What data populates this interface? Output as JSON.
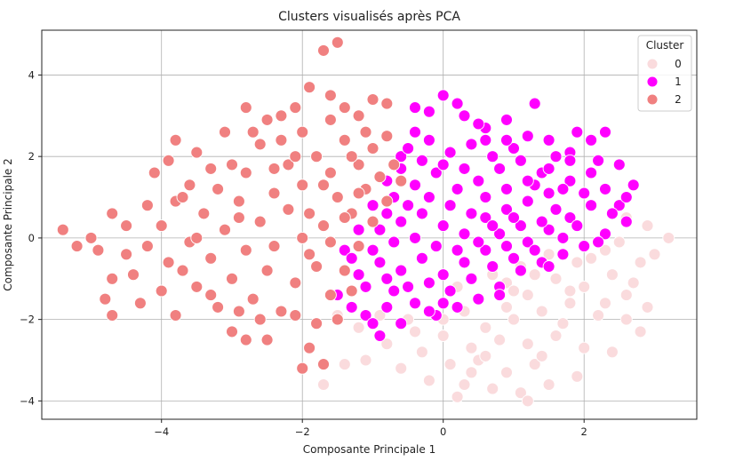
{
  "chart_data": {
    "type": "scatter",
    "title": "Clusters visualisés après PCA",
    "xlabel": "Composante Principale 1",
    "ylabel": "Composante Principale 2",
    "xlim": [
      -5.7,
      3.6
    ],
    "ylim": [
      -4.45,
      5.1
    ],
    "xticks": [
      -4,
      -2,
      0,
      2
    ],
    "yticks": [
      -4,
      -2,
      0,
      2,
      4
    ],
    "xtick_labels": [
      "−4",
      "−2",
      "0",
      "2"
    ],
    "ytick_labels": [
      "−4",
      "−2",
      "0",
      "2",
      "4"
    ],
    "grid": true,
    "legend": {
      "title": "Cluster",
      "placement": "top-right",
      "entries": [
        "0",
        "1",
        "2"
      ]
    },
    "series": [
      {
        "name": "0",
        "color": "#fadbdd",
        "points": [
          [
            0.2,
            -1.2
          ],
          [
            0.5,
            -1.5
          ],
          [
            0.9,
            -1.1
          ],
          [
            1.2,
            -1.4
          ],
          [
            1.6,
            -1.0
          ],
          [
            2.0,
            -1.2
          ],
          [
            2.4,
            -0.9
          ],
          [
            2.8,
            -0.6
          ],
          [
            3.2,
            0.0
          ],
          [
            2.9,
            0.3
          ],
          [
            2.6,
            0.5
          ],
          [
            2.3,
            -0.3
          ],
          [
            1.9,
            -0.6
          ],
          [
            1.5,
            -0.4
          ],
          [
            1.1,
            -0.7
          ],
          [
            0.7,
            -0.9
          ],
          [
            0.3,
            -1.8
          ],
          [
            0.6,
            -2.2
          ],
          [
            1.0,
            -2.0
          ],
          [
            1.4,
            -1.8
          ],
          [
            1.8,
            -1.6
          ],
          [
            2.2,
            -1.9
          ],
          [
            2.6,
            -1.4
          ],
          [
            0.0,
            -2.4
          ],
          [
            0.4,
            -2.7
          ],
          [
            0.8,
            -2.5
          ],
          [
            1.2,
            -2.6
          ],
          [
            1.6,
            -2.4
          ],
          [
            2.0,
            -2.7
          ],
          [
            -0.3,
            -2.8
          ],
          [
            0.1,
            -3.1
          ],
          [
            0.5,
            -3.0
          ],
          [
            0.9,
            -3.3
          ],
          [
            1.3,
            -3.1
          ],
          [
            -0.6,
            -3.2
          ],
          [
            -0.2,
            -3.5
          ],
          [
            0.3,
            -3.6
          ],
          [
            0.7,
            -3.7
          ],
          [
            1.1,
            -3.8
          ],
          [
            -0.8,
            -2.6
          ],
          [
            -1.1,
            -3.0
          ],
          [
            -1.4,
            -3.1
          ],
          [
            -1.7,
            -3.6
          ],
          [
            -1.2,
            -2.2
          ],
          [
            -1.5,
            -1.9
          ],
          [
            -0.9,
            -1.9
          ],
          [
            2.8,
            -2.3
          ],
          [
            2.4,
            -2.8
          ],
          [
            1.9,
            -3.4
          ],
          [
            1.5,
            -3.6
          ],
          [
            1.2,
            -4.0
          ],
          [
            0.2,
            -3.9
          ],
          [
            2.7,
            -1.1
          ],
          [
            3.0,
            -0.4
          ],
          [
            2.5,
            -0.1
          ],
          [
            1.7,
            -2.1
          ],
          [
            0.9,
            -1.7
          ],
          [
            1.3,
            -0.9
          ],
          [
            2.1,
            -0.5
          ],
          [
            0.0,
            -2.0
          ],
          [
            -0.4,
            -2.3
          ],
          [
            0.6,
            -2.9
          ],
          [
            1.0,
            -1.3
          ],
          [
            1.8,
            -1.3
          ],
          [
            2.3,
            -1.6
          ],
          [
            0.4,
            -3.3
          ],
          [
            -0.5,
            -2.0
          ],
          [
            1.4,
            -2.9
          ],
          [
            2.6,
            -2.0
          ],
          [
            2.9,
            -1.7
          ]
        ]
      },
      {
        "name": "1",
        "color": "#ff00ff",
        "points": [
          [
            -1.5,
            -1.4
          ],
          [
            -1.3,
            -1.7
          ],
          [
            -1.1,
            -1.9
          ],
          [
            -1.2,
            -0.9
          ],
          [
            -1.4,
            -0.3
          ],
          [
            -1.2,
            0.2
          ],
          [
            -1.0,
            0.8
          ],
          [
            -0.8,
            1.4
          ],
          [
            -0.6,
            2.0
          ],
          [
            -0.4,
            2.6
          ],
          [
            -0.2,
            3.1
          ],
          [
            0.0,
            3.5
          ],
          [
            0.3,
            3.0
          ],
          [
            0.6,
            2.7
          ],
          [
            0.9,
            2.9
          ],
          [
            1.2,
            2.5
          ],
          [
            1.5,
            2.4
          ],
          [
            1.8,
            2.1
          ],
          [
            2.1,
            2.4
          ],
          [
            2.3,
            2.6
          ],
          [
            2.5,
            1.8
          ],
          [
            2.7,
            1.3
          ],
          [
            2.5,
            0.8
          ],
          [
            2.6,
            0.4
          ],
          [
            2.3,
            0.1
          ],
          [
            2.0,
            -0.2
          ],
          [
            1.7,
            -0.4
          ],
          [
            1.4,
            -0.6
          ],
          [
            1.1,
            -0.8
          ],
          [
            0.8,
            -1.2
          ],
          [
            0.5,
            -1.5
          ],
          [
            0.2,
            -1.7
          ],
          [
            -0.1,
            -1.9
          ],
          [
            -0.4,
            -1.6
          ],
          [
            -0.7,
            -1.3
          ],
          [
            -0.9,
            -2.4
          ],
          [
            -0.6,
            -2.1
          ],
          [
            -0.9,
            -0.6
          ],
          [
            -0.6,
            -0.8
          ],
          [
            -0.3,
            -0.5
          ],
          [
            0.0,
            -0.9
          ],
          [
            0.3,
            -0.6
          ],
          [
            0.6,
            -0.3
          ],
          [
            0.9,
            -0.2
          ],
          [
            1.2,
            -0.1
          ],
          [
            1.5,
            0.2
          ],
          [
            1.8,
            0.5
          ],
          [
            2.1,
            0.8
          ],
          [
            -0.9,
            0.2
          ],
          [
            -0.6,
            0.4
          ],
          [
            -0.3,
            0.6
          ],
          [
            0.0,
            0.3
          ],
          [
            0.3,
            0.1
          ],
          [
            0.6,
            0.5
          ],
          [
            0.9,
            0.7
          ],
          [
            1.2,
            0.9
          ],
          [
            1.5,
            1.1
          ],
          [
            1.8,
            1.4
          ],
          [
            2.1,
            1.6
          ],
          [
            -0.7,
            1.0
          ],
          [
            -0.4,
            1.3
          ],
          [
            -0.1,
            1.6
          ],
          [
            0.2,
            1.2
          ],
          [
            0.5,
            1.4
          ],
          [
            0.8,
            1.7
          ],
          [
            1.1,
            1.9
          ],
          [
            1.4,
            1.6
          ],
          [
            1.7,
            1.2
          ],
          [
            -0.5,
            2.2
          ],
          [
            -0.2,
            2.4
          ],
          [
            0.1,
            2.1
          ],
          [
            0.4,
            2.3
          ],
          [
            0.7,
            2.0
          ],
          [
            1.0,
            2.2
          ],
          [
            1.3,
            1.3
          ],
          [
            1.6,
            0.7
          ],
          [
            1.9,
            0.3
          ],
          [
            2.2,
            -0.1
          ],
          [
            -1.0,
            -0.3
          ],
          [
            -0.7,
            -0.1
          ],
          [
            -0.4,
            0.0
          ],
          [
            -0.1,
            -0.2
          ],
          [
            0.2,
            -0.3
          ],
          [
            0.5,
            -0.1
          ],
          [
            0.8,
            0.1
          ],
          [
            1.1,
            0.3
          ],
          [
            1.4,
            0.4
          ],
          [
            1.7,
            0.0
          ],
          [
            -1.1,
            -1.2
          ],
          [
            -0.8,
            -1.0
          ],
          [
            -0.5,
            -1.2
          ],
          [
            -0.2,
            -1.1
          ],
          [
            0.1,
            -1.3
          ],
          [
            0.4,
            -1.0
          ],
          [
            0.7,
            -0.7
          ],
          [
            1.0,
            -0.5
          ],
          [
            1.3,
            -0.3
          ],
          [
            -0.3,
            1.9
          ],
          [
            0.0,
            1.8
          ],
          [
            0.3,
            1.7
          ],
          [
            0.6,
            1.0
          ],
          [
            0.9,
            1.2
          ],
          [
            1.2,
            1.4
          ],
          [
            1.5,
            1.7
          ],
          [
            1.8,
            1.9
          ],
          [
            2.0,
            1.1
          ],
          [
            2.3,
            1.2
          ],
          [
            -0.8,
            0.6
          ],
          [
            -0.5,
            0.8
          ],
          [
            -0.2,
            1.0
          ],
          [
            0.1,
            0.8
          ],
          [
            0.4,
            0.6
          ],
          [
            0.7,
            0.3
          ],
          [
            1.0,
            0.5
          ],
          [
            -0.4,
            3.2
          ],
          [
            1.3,
            3.3
          ],
          [
            -0.8,
            -1.7
          ],
          [
            0.0,
            -1.6
          ],
          [
            0.9,
            2.4
          ],
          [
            1.9,
            2.6
          ],
          [
            2.4,
            0.6
          ],
          [
            2.2,
            1.9
          ],
          [
            -1.3,
            -0.5
          ],
          [
            0.5,
            2.8
          ],
          [
            0.2,
            3.3
          ],
          [
            -0.6,
            1.7
          ],
          [
            1.6,
            2.0
          ],
          [
            2.6,
            1.0
          ],
          [
            -1.0,
            -2.1
          ],
          [
            -0.2,
            -1.8
          ],
          [
            0.8,
            -1.4
          ],
          [
            1.5,
            -0.7
          ],
          [
            -0.9,
            1.5
          ],
          [
            0.6,
            2.4
          ]
        ]
      },
      {
        "name": "2",
        "color": "#f08080",
        "points": [
          [
            -5.4,
            0.2
          ],
          [
            -5.2,
            -0.2
          ],
          [
            -5.0,
            0.0
          ],
          [
            -4.9,
            -0.3
          ],
          [
            -4.7,
            0.6
          ],
          [
            -4.5,
            0.3
          ],
          [
            -4.7,
            -1.0
          ],
          [
            -4.8,
            -1.5
          ],
          [
            -4.7,
            -1.9
          ],
          [
            -4.4,
            -0.9
          ],
          [
            -4.2,
            -0.2
          ],
          [
            -4.0,
            0.3
          ],
          [
            -3.8,
            0.9
          ],
          [
            -3.6,
            1.3
          ],
          [
            -3.5,
            2.1
          ],
          [
            -3.8,
            2.4
          ],
          [
            -4.1,
            1.6
          ],
          [
            -3.9,
            -0.6
          ],
          [
            -4.0,
            -1.3
          ],
          [
            -3.8,
            -1.9
          ],
          [
            -3.5,
            -1.2
          ],
          [
            -3.3,
            -0.5
          ],
          [
            -3.1,
            0.2
          ],
          [
            -2.9,
            0.9
          ],
          [
            -2.8,
            1.6
          ],
          [
            -2.6,
            2.3
          ],
          [
            -2.8,
            3.2
          ],
          [
            -2.5,
            2.9
          ],
          [
            -2.3,
            3.0
          ],
          [
            -2.1,
            3.2
          ],
          [
            -1.9,
            3.7
          ],
          [
            -1.7,
            4.6
          ],
          [
            -1.5,
            4.8
          ],
          [
            -1.4,
            3.2
          ],
          [
            -1.2,
            3.0
          ],
          [
            -1.0,
            3.4
          ],
          [
            -0.8,
            3.3
          ],
          [
            -0.8,
            2.5
          ],
          [
            -1.0,
            2.2
          ],
          [
            -1.2,
            1.8
          ],
          [
            -1.4,
            2.4
          ],
          [
            -1.6,
            1.6
          ],
          [
            -1.8,
            2.0
          ],
          [
            -2.0,
            1.3
          ],
          [
            -2.2,
            1.8
          ],
          [
            -2.4,
            1.1
          ],
          [
            -2.6,
            0.4
          ],
          [
            -2.8,
            -0.3
          ],
          [
            -3.0,
            -1.0
          ],
          [
            -3.2,
            -1.7
          ],
          [
            -3.0,
            -2.3
          ],
          [
            -2.8,
            -2.5
          ],
          [
            -2.5,
            -2.5
          ],
          [
            -2.3,
            -1.8
          ],
          [
            -2.1,
            -1.1
          ],
          [
            -1.9,
            -0.4
          ],
          [
            -1.7,
            0.3
          ],
          [
            -1.5,
            1.0
          ],
          [
            -1.3,
            0.6
          ],
          [
            -1.1,
            1.2
          ],
          [
            -0.9,
            1.5
          ],
          [
            -0.7,
            1.8
          ],
          [
            -0.6,
            1.4
          ],
          [
            -0.8,
            0.9
          ],
          [
            -1.0,
            0.4
          ],
          [
            -1.2,
            -0.2
          ],
          [
            -1.4,
            -0.8
          ],
          [
            -1.6,
            -1.4
          ],
          [
            -1.8,
            -2.1
          ],
          [
            -1.9,
            -2.7
          ],
          [
            -1.7,
            -3.1
          ],
          [
            -2.0,
            -3.2
          ],
          [
            -3.6,
            -0.1
          ],
          [
            -3.4,
            0.6
          ],
          [
            -3.2,
            1.2
          ],
          [
            -3.0,
            1.8
          ],
          [
            -2.7,
            2.6
          ],
          [
            -2.4,
            1.7
          ],
          [
            -2.2,
            0.7
          ],
          [
            -2.0,
            0.0
          ],
          [
            -1.8,
            -0.7
          ],
          [
            -1.6,
            -0.1
          ],
          [
            -1.4,
            0.5
          ],
          [
            -1.2,
            1.1
          ],
          [
            -2.5,
            -0.8
          ],
          [
            -2.7,
            -1.5
          ],
          [
            -2.9,
            -1.8
          ],
          [
            -3.3,
            -1.4
          ],
          [
            -3.7,
            -0.8
          ],
          [
            -4.2,
            0.8
          ],
          [
            -4.5,
            -0.4
          ],
          [
            -3.9,
            1.9
          ],
          [
            -3.1,
            2.6
          ],
          [
            -2.3,
            2.4
          ],
          [
            -1.6,
            2.9
          ],
          [
            -1.1,
            2.6
          ],
          [
            -2.1,
            -1.9
          ],
          [
            -1.5,
            -2.0
          ],
          [
            -1.3,
            -1.3
          ],
          [
            -2.6,
            -2.0
          ],
          [
            -3.5,
            0.0
          ],
          [
            -3.3,
            1.7
          ],
          [
            -2.9,
            0.5
          ],
          [
            -2.4,
            -0.2
          ],
          [
            -1.9,
            0.6
          ],
          [
            -1.7,
            1.3
          ],
          [
            -2.1,
            2.0
          ],
          [
            -1.3,
            2.0
          ],
          [
            -2.0,
            2.6
          ],
          [
            -1.6,
            3.5
          ],
          [
            -3.7,
            1.0
          ],
          [
            -4.3,
            -1.6
          ]
        ]
      }
    ]
  }
}
